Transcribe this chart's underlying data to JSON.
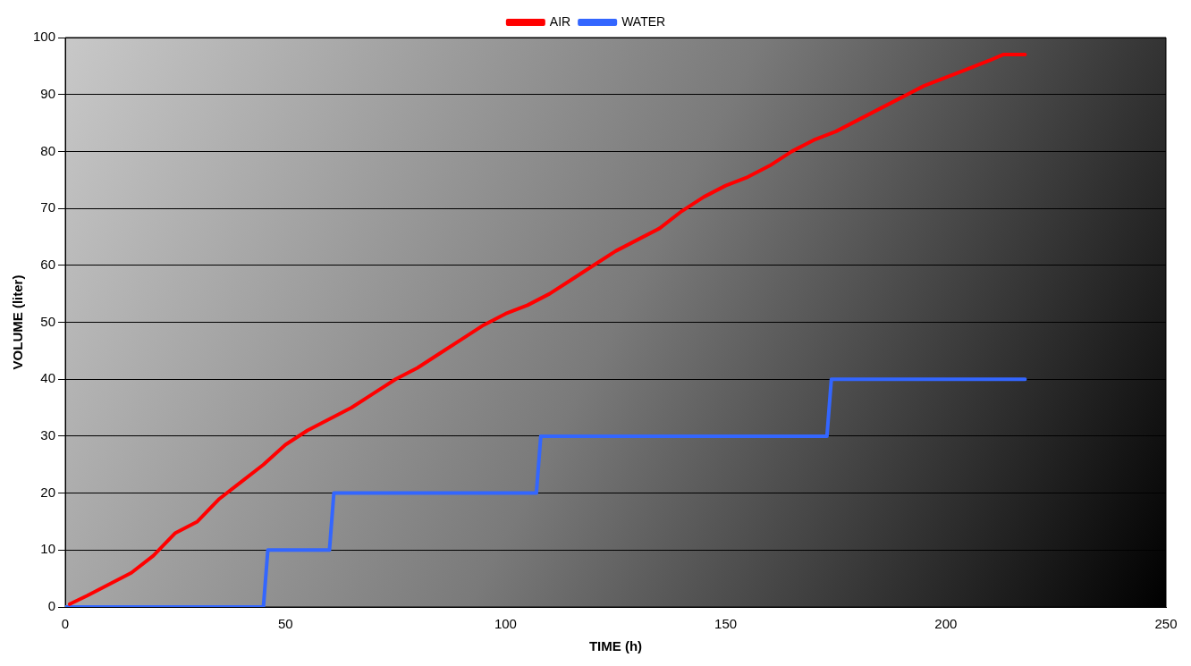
{
  "chart_data": {
    "type": "line",
    "xlabel": "TIME (h)",
    "ylabel": "VOLUME (liter)",
    "xlim": [
      0,
      250
    ],
    "xticks": [
      0,
      50,
      100,
      150,
      200,
      250
    ],
    "ylim": [
      0,
      100
    ],
    "yticks": [
      0,
      10,
      20,
      30,
      40,
      50,
      60,
      70,
      80,
      90,
      100
    ],
    "grid": "y",
    "legend": "top",
    "marker": "none",
    "line_style": "solid",
    "series": [
      {
        "name": "AIR",
        "color": "#ff0000",
        "x": [
          1,
          5,
          10,
          15,
          20,
          25,
          30,
          35,
          40,
          45,
          50,
          55,
          60,
          65,
          70,
          75,
          80,
          85,
          90,
          95,
          100,
          105,
          110,
          115,
          120,
          125,
          130,
          135,
          140,
          145,
          150,
          155,
          160,
          165,
          170,
          175,
          180,
          185,
          190,
          195,
          200,
          205,
          210,
          213,
          218
        ],
        "values": [
          0.5,
          2,
          4,
          6,
          9,
          13,
          15,
          19,
          22,
          25,
          28.5,
          31,
          33,
          35,
          37.5,
          40,
          42,
          44.5,
          47,
          49.5,
          51.5,
          53,
          55,
          57.5,
          60,
          62.5,
          64.5,
          66.5,
          69.5,
          72,
          74,
          75.5,
          77.5,
          80,
          82,
          83.5,
          85.5,
          87.5,
          89.5,
          91.5,
          93,
          94.5,
          96,
          97,
          97
        ]
      },
      {
        "name": "WATER",
        "color": "#3366ff",
        "x": [
          0,
          45,
          46,
          60,
          61,
          107,
          108,
          173,
          174,
          218
        ],
        "values": [
          0,
          0,
          10,
          10,
          20,
          20,
          30,
          30,
          40,
          40
        ]
      }
    ]
  }
}
